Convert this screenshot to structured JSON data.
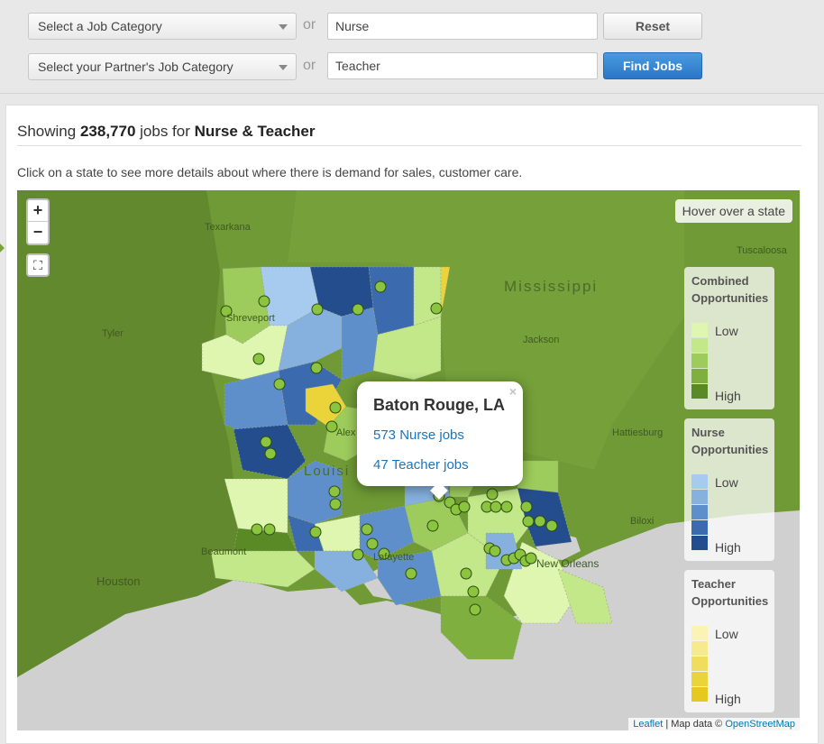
{
  "filters": {
    "category1_placeholder": "Select a Job Category",
    "category2_placeholder": "Select your Partner's Job Category",
    "or_label": "or",
    "job1_value": "Nurse",
    "job2_value": "Teacher",
    "reset_label": "Reset",
    "find_label": "Find Jobs"
  },
  "results": {
    "prefix": "Showing",
    "count": "238,770",
    "mid": "jobs for",
    "query": "Nurse & Teacher",
    "description": "Click on a state to see more details about where there is demand for sales, customer care."
  },
  "map": {
    "zoom_in": "+",
    "zoom_out": "−",
    "fullscreen": "⛶",
    "hover_text": "Hover over a state",
    "labels": {
      "texarkana": "Texarkana",
      "tuscaloosa": "Tuscaloosa",
      "mississippi": "Mississippi",
      "shreveport": "Shreveport",
      "tyler": "Tyler",
      "jackson": "Jackson",
      "hattiesburg": "Hattiesburg",
      "alex": "Alex",
      "louisiana": "Louisi",
      "lafayette": "Lafayette",
      "beaumont": "Beaumont",
      "houston": "Houston",
      "biloxi": "Biloxi",
      "new_orleans": "New Orleans"
    },
    "attribution": {
      "leaflet": "Leaflet",
      "sep": " | Map data © ",
      "osm": "OpenStreetMap"
    }
  },
  "legends": [
    {
      "title_line1": "Combined",
      "title_line2": "Opportunities",
      "low": "Low",
      "high": "High",
      "colors": [
        "#dff6b0",
        "#c3e88a",
        "#9dcc5c",
        "#7eaf3f",
        "#5a8a26"
      ]
    },
    {
      "title_line1": "Nurse",
      "title_line2": "Opportunities",
      "low": "Low",
      "high": "High",
      "colors": [
        "#a7cbee",
        "#86b1df",
        "#5f8fca",
        "#3c6aae",
        "#244d8d"
      ]
    },
    {
      "title_line1": "Teacher",
      "title_line2": "Opportunities",
      "low": "Low",
      "high": "High",
      "colors": [
        "#fbf3b3",
        "#f6ea8c",
        "#f0dd5b",
        "#ebd33a",
        "#e6c91e"
      ]
    }
  ],
  "popup": {
    "close": "×",
    "title": "Baton Rouge, LA",
    "nurse_jobs": "573 Nurse jobs",
    "teacher_jobs": "47 Teacher jobs"
  },
  "colors": {
    "accent": "#2a76c6",
    "land": "#6b9332",
    "water": "#c8c8c8",
    "link": "#1b75bb"
  }
}
